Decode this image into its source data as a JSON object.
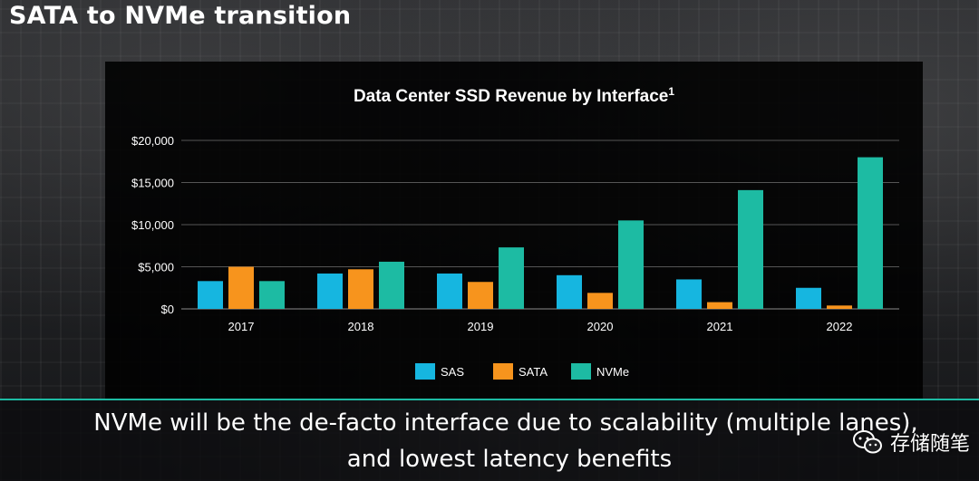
{
  "slide": {
    "title": "SATA to NVMe transition",
    "footer_line1": "NVMe will be the de-facto interface due to scalability (multiple lanes),",
    "footer_line2": "and lowest latency benefits"
  },
  "watermark": {
    "text": "存储随笔",
    "icon": "wechat-icon"
  },
  "colors": {
    "SAS": "#16b6e0",
    "SATA": "#f7941d",
    "NVMe": "#1dbba3",
    "accent": "#1dbba3"
  },
  "chart_data": {
    "type": "bar",
    "title": "Data Center SSD Revenue by Interface",
    "title_superscript": "1",
    "categories": [
      "2017",
      "2018",
      "2019",
      "2020",
      "2021",
      "2022"
    ],
    "series": [
      {
        "name": "SAS",
        "values": [
          3300,
          4200,
          4200,
          4000,
          3500,
          2500
        ]
      },
      {
        "name": "SATA",
        "values": [
          5000,
          4700,
          3200,
          1900,
          800,
          400
        ]
      },
      {
        "name": "NVMe",
        "values": [
          3300,
          5600,
          7300,
          10500,
          14100,
          18000
        ]
      }
    ],
    "ylim": [
      0,
      20000
    ],
    "yticks": [
      0,
      5000,
      10000,
      15000,
      20000
    ],
    "ytick_labels": [
      "$0",
      "$5,000",
      "$10,000",
      "$15,000",
      "$20,000"
    ],
    "xlabel": "",
    "ylabel": "",
    "grid": true,
    "legend_position": "bottom"
  }
}
